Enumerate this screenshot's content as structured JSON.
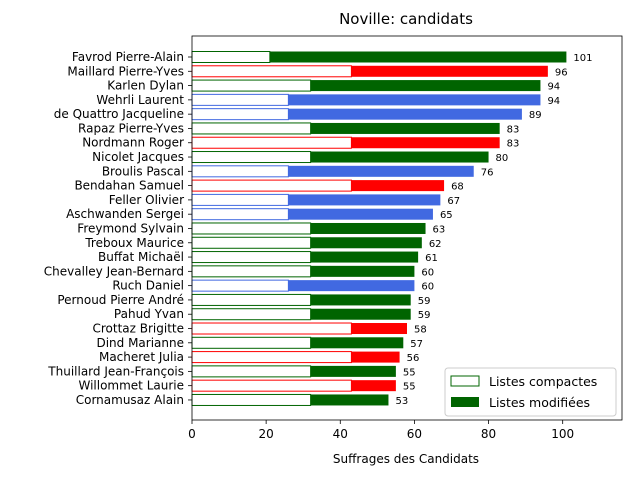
{
  "chart_data": {
    "type": "bar",
    "orientation": "horizontal",
    "stacked": true,
    "title": "Noville: candidats",
    "xlabel": "Suffrages des Candidats",
    "ylabel": "",
    "xlim": [
      0,
      116
    ],
    "xticks": [
      0,
      20,
      40,
      60,
      80,
      100
    ],
    "legend_position": "lower right",
    "categories": [
      "Favrod Pierre-Alain",
      "Maillard Pierre-Yves",
      "Karlen Dylan",
      "Wehrli Laurent",
      "de Quattro Jacqueline",
      "Rapaz Pierre-Yves",
      "Nordmann Roger",
      "Nicolet Jacques",
      "Broulis Pascal",
      "Bendahan Samuel",
      "Feller Olivier",
      "Aschwanden Sergei",
      "Freymond Sylvain",
      "Treboux Maurice",
      "Buffat Michaël",
      "Chevalley Jean-Bernard",
      "Ruch Daniel",
      "Pernoud Pierre André",
      "Pahud Yvan",
      "Crottaz Brigitte",
      "Dind Marianne",
      "Macheret Julia",
      "Thuillard Jean-François",
      "Willommet Laurie",
      "Cornamusaz Alain"
    ],
    "bar_colors": [
      "#006400",
      "#ff0000",
      "#006400",
      "#4169e1",
      "#4169e1",
      "#006400",
      "#ff0000",
      "#006400",
      "#4169e1",
      "#ff0000",
      "#4169e1",
      "#4169e1",
      "#006400",
      "#006400",
      "#006400",
      "#006400",
      "#4169e1",
      "#006400",
      "#006400",
      "#ff0000",
      "#006400",
      "#ff0000",
      "#006400",
      "#ff0000",
      "#006400"
    ],
    "series": [
      {
        "name": "Listes compactes",
        "values": [
          21,
          43,
          32,
          26,
          26,
          32,
          43,
          32,
          26,
          43,
          26,
          26,
          32,
          32,
          32,
          32,
          26,
          32,
          32,
          43,
          32,
          43,
          32,
          43,
          32
        ]
      },
      {
        "name": "Listes modifiées",
        "values": [
          80,
          53,
          62,
          68,
          63,
          51,
          40,
          48,
          50,
          25,
          41,
          39,
          31,
          30,
          29,
          28,
          34,
          27,
          27,
          15,
          25,
          13,
          23,
          12,
          21
        ]
      }
    ],
    "totals": [
      101,
      96,
      94,
      94,
      89,
      83,
      83,
      80,
      76,
      68,
      67,
      65,
      63,
      62,
      61,
      60,
      60,
      59,
      59,
      58,
      57,
      56,
      55,
      55,
      53
    ],
    "legend_colors": {
      "compact_fill": "#ffffff",
      "compact_edge": "#006400",
      "modified_fill": "#006400"
    }
  }
}
